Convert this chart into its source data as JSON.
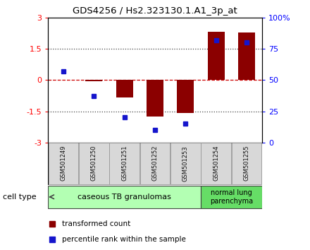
{
  "title": "GDS4256 / Hs2.323130.1.A1_3p_at",
  "samples": [
    "GSM501249",
    "GSM501250",
    "GSM501251",
    "GSM501252",
    "GSM501253",
    "GSM501254",
    "GSM501255"
  ],
  "transformed_counts": [
    0.02,
    -0.05,
    -0.85,
    -1.75,
    -1.6,
    2.3,
    2.28
  ],
  "percentile_ranks": [
    57,
    37,
    20,
    10,
    15,
    82,
    80
  ],
  "bar_color": "#8B0000",
  "dot_color": "#1515cc",
  "ylim_left": [
    -3,
    3
  ],
  "ylim_right": [
    0,
    100
  ],
  "yticks_left": [
    -3,
    -1.5,
    0,
    1.5,
    3
  ],
  "yticks_right": [
    0,
    25,
    50,
    75,
    100
  ],
  "ytick_labels_left": [
    "-3",
    "-1.5",
    "0",
    "1.5",
    "3"
  ],
  "ytick_labels_right": [
    "0",
    "25",
    "50",
    "75",
    "100%"
  ],
  "group1_samples": [
    0,
    1,
    2,
    3,
    4
  ],
  "group2_samples": [
    5,
    6
  ],
  "group1_label": "caseous TB granulomas",
  "group2_label": "normal lung\nparenchyma",
  "group1_color": "#b3ffb3",
  "group2_color": "#66dd66",
  "cell_type_label": "cell type",
  "legend_bar_label": "transformed count",
  "legend_dot_label": "percentile rank within the sample",
  "background_color": "#ffffff",
  "plot_bg_color": "#ffffff",
  "zero_line_color": "#cc0000",
  "dotted_line_color": "#444444",
  "sample_box_color": "#d8d8d8",
  "sample_box_edge": "#888888"
}
